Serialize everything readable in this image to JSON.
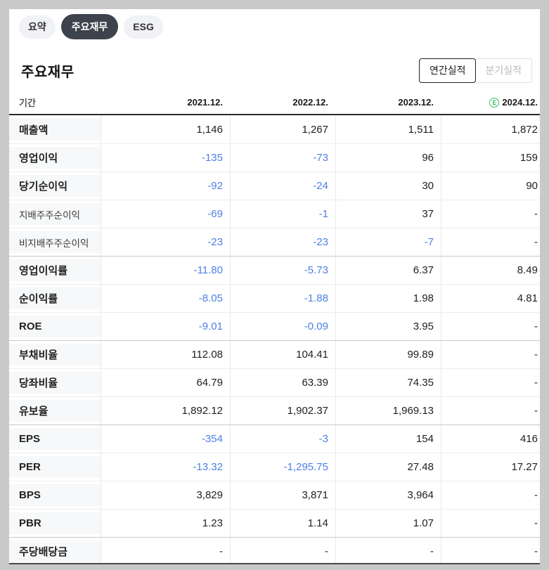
{
  "tabs": [
    {
      "label": "요약",
      "active": false
    },
    {
      "label": "주요재무",
      "active": true
    },
    {
      "label": "ESG",
      "active": false
    }
  ],
  "title": "주요재무",
  "period_toggle": {
    "annual": "연간실적",
    "quarterly": "분기실적",
    "selected": "annual"
  },
  "table": {
    "period_header": "기간",
    "columns": [
      {
        "label": "2021.12.",
        "estimate": false
      },
      {
        "label": "2022.12.",
        "estimate": false
      },
      {
        "label": "2023.12.",
        "estimate": false
      },
      {
        "label": "2024.12.",
        "estimate": true,
        "estimate_badge": "E"
      }
    ],
    "rows": [
      {
        "label": "매출액",
        "sub": false,
        "section": false,
        "values": [
          "1,146",
          "1,267",
          "1,511",
          "1,872"
        ]
      },
      {
        "label": "영업이익",
        "sub": false,
        "section": false,
        "values": [
          "-135",
          "-73",
          "96",
          "159"
        ]
      },
      {
        "label": "당기순이익",
        "sub": false,
        "section": false,
        "values": [
          "-92",
          "-24",
          "30",
          "90"
        ]
      },
      {
        "label": "지배주주순이익",
        "sub": true,
        "section": false,
        "values": [
          "-69",
          "-1",
          "37",
          "-"
        ]
      },
      {
        "label": "비지배주주순이익",
        "sub": true,
        "section": false,
        "values": [
          "-23",
          "-23",
          "-7",
          "-"
        ]
      },
      {
        "label": "영업이익률",
        "sub": false,
        "section": true,
        "values": [
          "-11.80",
          "-5.73",
          "6.37",
          "8.49"
        ]
      },
      {
        "label": "순이익률",
        "sub": false,
        "section": false,
        "values": [
          "-8.05",
          "-1.88",
          "1.98",
          "4.81"
        ]
      },
      {
        "label": "ROE",
        "sub": false,
        "section": false,
        "values": [
          "-9.01",
          "-0.09",
          "3.95",
          "-"
        ]
      },
      {
        "label": "부채비율",
        "sub": false,
        "section": true,
        "values": [
          "112.08",
          "104.41",
          "99.89",
          "-"
        ]
      },
      {
        "label": "당좌비율",
        "sub": false,
        "section": false,
        "values": [
          "64.79",
          "63.39",
          "74.35",
          "-"
        ]
      },
      {
        "label": "유보율",
        "sub": false,
        "section": false,
        "values": [
          "1,892.12",
          "1,902.37",
          "1,969.13",
          "-"
        ]
      },
      {
        "label": "EPS",
        "sub": false,
        "section": true,
        "values": [
          "-354",
          "-3",
          "154",
          "416"
        ]
      },
      {
        "label": "PER",
        "sub": false,
        "section": false,
        "values": [
          "-13.32",
          "-1,295.75",
          "27.48",
          "17.27"
        ]
      },
      {
        "label": "BPS",
        "sub": false,
        "section": false,
        "values": [
          "3,829",
          "3,871",
          "3,964",
          "-"
        ]
      },
      {
        "label": "PBR",
        "sub": false,
        "section": false,
        "values": [
          "1.23",
          "1.14",
          "1.07",
          "-"
        ]
      },
      {
        "label": "주당배당금",
        "sub": false,
        "section": true,
        "values": [
          "-",
          "-",
          "-",
          "-"
        ]
      }
    ]
  },
  "colors": {
    "negative_value": "#4d80e4",
    "estimate_green": "#3dbd66",
    "active_tab_bg": "#3d434c",
    "page_background": "#c9c9c9"
  }
}
